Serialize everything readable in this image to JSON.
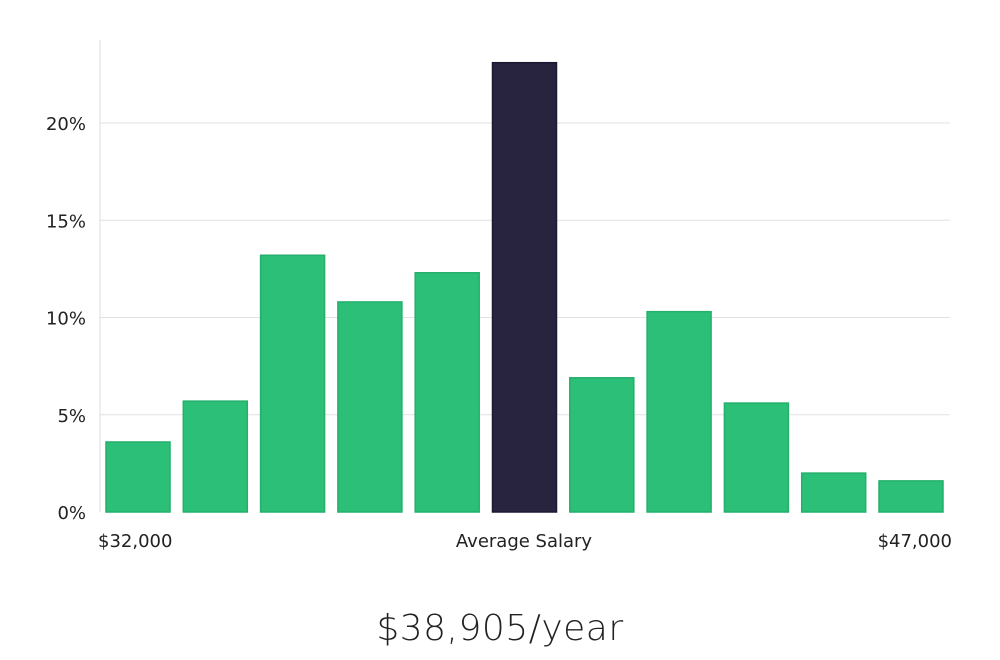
{
  "chart_data": {
    "type": "bar",
    "title": "",
    "xlabel": "Average Salary",
    "ylabel": "",
    "x_start_label": "$32,000",
    "x_end_label": "$47,000",
    "ylim": [
      0,
      24
    ],
    "yticks": [
      {
        "value": 0,
        "label": "0%"
      },
      {
        "value": 5,
        "label": "5%"
      },
      {
        "value": 10,
        "label": "10%"
      },
      {
        "value": 15,
        "label": "15%"
      },
      {
        "value": 20,
        "label": "20%"
      }
    ],
    "values": [
      3.6,
      5.7,
      13.2,
      10.8,
      12.3,
      23.1,
      6.9,
      10.3,
      5.6,
      2.0,
      1.6
    ],
    "highlight_index": 5,
    "colors": {
      "bar": "#2bbf77",
      "highlight": "#28233f",
      "grid": "#e2e2e2",
      "axis": "#dddddd"
    }
  },
  "summary": {
    "average_salary": "$38,905/year"
  }
}
